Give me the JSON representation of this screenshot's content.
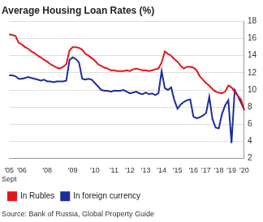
{
  "chart_data": {
    "type": "line",
    "title": "Average Housing Loan Rates (%)",
    "source": "Source: Bank of Russia, Global Property Guide",
    "categories": [
      "'05 Sept",
      null,
      null,
      null,
      "'06",
      null,
      null,
      null,
      null,
      null,
      null,
      null,
      "'08",
      null,
      null,
      null,
      null,
      null,
      null,
      null,
      "'09",
      null,
      null,
      null,
      null,
      null,
      null,
      "'10",
      null,
      null,
      null,
      null,
      null,
      "'11",
      null,
      null,
      null,
      null,
      "'12",
      null,
      null,
      null,
      null,
      "'13",
      null,
      null,
      null,
      null,
      "'14",
      null,
      null,
      null,
      null,
      "'15",
      null,
      null,
      null,
      null,
      "'16",
      null,
      null,
      null,
      "'17",
      null,
      null,
      null,
      "'18",
      null,
      null,
      null,
      "'19",
      null,
      null,
      null,
      "'20"
    ],
    "series": [
      {
        "name": "In Rubles",
        "color": "#e3161d",
        "values": [
          16.5,
          16.4,
          16.3,
          15.5,
          15.3,
          15.0,
          14.8,
          14.5,
          14.3,
          14.0,
          13.8,
          13.5,
          13.3,
          13.0,
          12.8,
          12.6,
          12.5,
          12.7,
          13.0,
          14.6,
          15.0,
          15.0,
          14.9,
          14.7,
          14.2,
          14.0,
          13.7,
          13.4,
          13.0,
          12.8,
          12.6,
          12.5,
          12.3,
          12.3,
          12.2,
          12.2,
          12.2,
          12.3,
          12.2,
          12.4,
          12.5,
          12.4,
          12.3,
          12.3,
          12.2,
          12.3,
          12.4,
          12.5,
          13.2,
          14.5,
          14.2,
          14.0,
          13.6,
          13.3,
          12.8,
          12.5,
          12.7,
          12.7,
          12.6,
          12.3,
          11.6,
          11.2,
          10.8,
          10.5,
          10.1,
          9.8,
          9.7,
          9.6,
          9.8,
          10.5,
          10.3,
          9.8,
          9.3,
          8.9,
          7.6
        ]
      },
      {
        "name": "In foreign currency",
        "color": "#1c2d9c",
        "values": [
          11.7,
          11.7,
          11.6,
          11.3,
          11.3,
          11.4,
          11.5,
          11.4,
          11.3,
          11.2,
          11.1,
          11.2,
          11.0,
          11.0,
          10.9,
          11.0,
          11.0,
          11.0,
          11.1,
          13.5,
          13.8,
          13.6,
          13.2,
          11.3,
          11.2,
          11.3,
          11.2,
          10.8,
          10.4,
          10.0,
          9.9,
          9.9,
          9.8,
          9.9,
          9.9,
          9.9,
          10.0,
          9.8,
          9.6,
          9.7,
          9.8,
          9.6,
          9.5,
          9.7,
          9.5,
          9.6,
          9.4,
          9.6,
          12.2,
          10.2,
          10.0,
          10.3,
          8.8,
          7.8,
          8.3,
          8.6,
          8.8,
          8.9,
          6.9,
          6.7,
          6.8,
          7.0,
          7.3,
          9.2,
          6.6,
          5.6,
          5.5,
          7.2,
          8.2,
          8.8,
          3.8,
          10.0,
          9.3,
          8.5,
          7.7
        ]
      }
    ],
    "ylim": [
      2,
      18
    ],
    "yticks": [
      2,
      4,
      6,
      8,
      10,
      12,
      14,
      16,
      18
    ],
    "grid": true,
    "legend": "bottom-left"
  }
}
